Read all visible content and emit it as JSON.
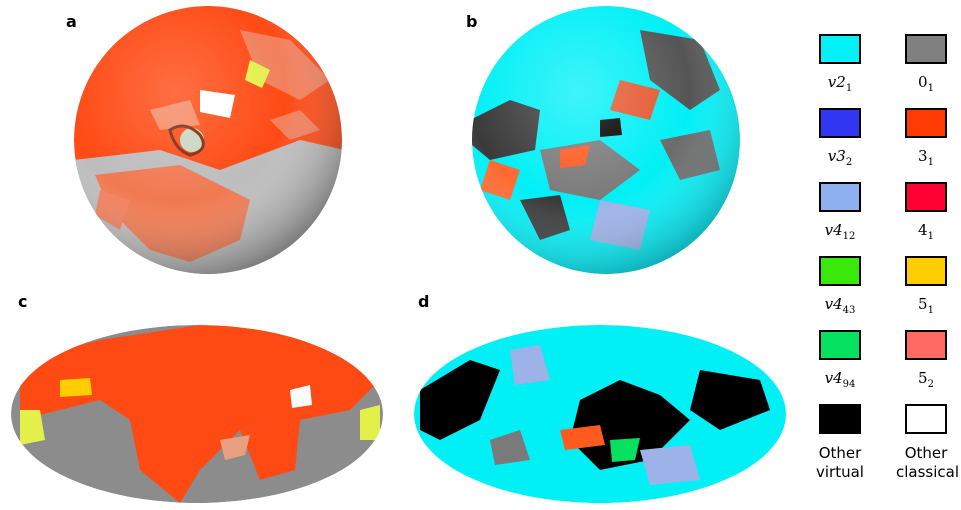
{
  "panels": {
    "a": "a",
    "b": "b",
    "c": "c",
    "d": "d"
  },
  "legend": [
    {
      "base": "v2",
      "sub": "1",
      "color": "#00f2f8",
      "italic": true
    },
    {
      "base": "0",
      "sub": "1",
      "color": "#808080",
      "italic": false
    },
    {
      "base": "v3",
      "sub": "2",
      "color": "#3237f2",
      "italic": true
    },
    {
      "base": "3",
      "sub": "1",
      "color": "#ff3b05",
      "italic": false
    },
    {
      "base": "v4",
      "sub": "12",
      "color": "#8fb0ee",
      "italic": true
    },
    {
      "base": "4",
      "sub": "1",
      "color": "#ff0033",
      "italic": false
    },
    {
      "base": "v4",
      "sub": "43",
      "color": "#3ae80c",
      "italic": true
    },
    {
      "base": "5",
      "sub": "1",
      "color": "#ffcd00",
      "italic": false
    },
    {
      "base": "v4",
      "sub": "94",
      "color": "#05e060",
      "italic": true
    },
    {
      "base": "5",
      "sub": "2",
      "color": "#ff6a63",
      "italic": false
    },
    {
      "text": [
        "Other",
        "virtual"
      ],
      "color": "#000000"
    },
    {
      "text": [
        "Other",
        "classical"
      ],
      "color": "#ffffff"
    }
  ],
  "colors": {
    "orange": "#ff4a14",
    "orange_light": "#f2805d",
    "gray": "#8c8c8c",
    "gray_sphere": "#bdbdbd",
    "cyan": "#00f0f6",
    "black": "#000000",
    "white": "#ffffff",
    "yellow": "#e3f04a",
    "salmon": "#e8a080",
    "periwinkle": "#9db2e8"
  }
}
